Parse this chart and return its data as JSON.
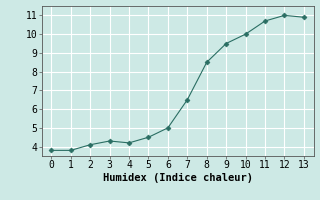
{
  "x": [
    0,
    1,
    2,
    3,
    4,
    5,
    6,
    7,
    8,
    9,
    10,
    11,
    12,
    13
  ],
  "y": [
    3.8,
    3.8,
    4.1,
    4.3,
    4.2,
    4.5,
    5.0,
    6.5,
    8.5,
    9.5,
    10.0,
    10.7,
    11.0,
    10.9
  ],
  "xlim": [
    -0.5,
    13.5
  ],
  "ylim": [
    3.5,
    11.5
  ],
  "xticks": [
    0,
    1,
    2,
    3,
    4,
    5,
    6,
    7,
    8,
    9,
    10,
    11,
    12,
    13
  ],
  "yticks": [
    4,
    5,
    6,
    7,
    8,
    9,
    10,
    11
  ],
  "xlabel": "Humidex (Indice chaleur)",
  "line_color": "#2a6e63",
  "marker": "D",
  "marker_size": 2.5,
  "bg_color": "#cde9e5",
  "grid_color": "#ffffff",
  "axis_label_fontsize": 7.5,
  "tick_fontsize": 7
}
